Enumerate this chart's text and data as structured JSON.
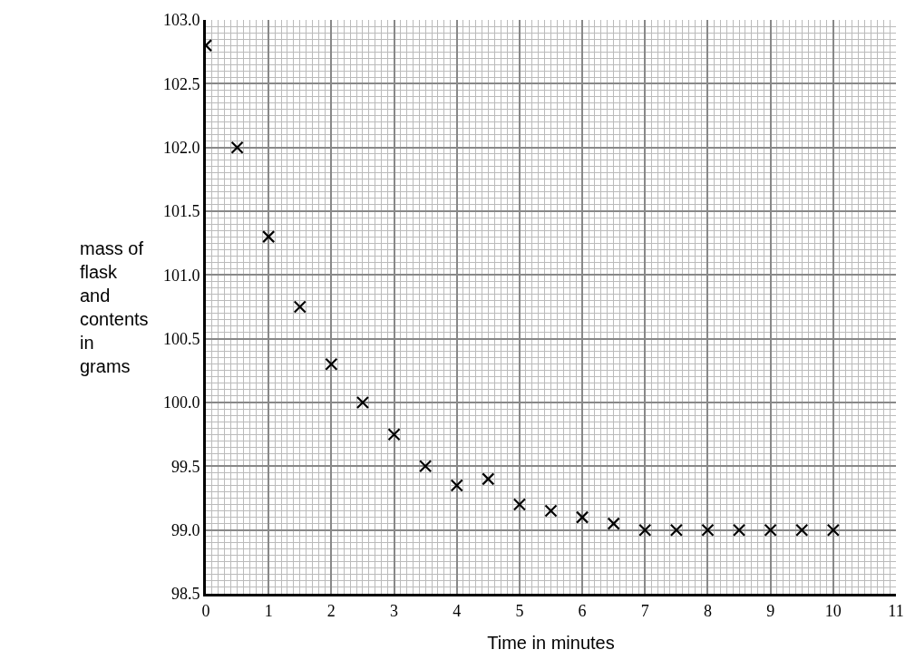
{
  "chart_data": {
    "type": "scatter",
    "xlabel": "Time in minutes",
    "ylabel": "mass of\nflask\nand\ncontents\nin\ngrams",
    "x": [
      0,
      0.5,
      1,
      1.5,
      2,
      2.5,
      3,
      3.5,
      4,
      4.5,
      5,
      5.5,
      6,
      6.5,
      7,
      7.5,
      8,
      8.5,
      9,
      9.5,
      10
    ],
    "series": [
      {
        "color": "#000000",
        "values": [
          102.8,
          102.0,
          101.3,
          100.75,
          100.3,
          100.0,
          99.75,
          99.5,
          99.35,
          99.4,
          99.2,
          99.15,
          99.1,
          99.05,
          99.0,
          99.0,
          99.0,
          99.0,
          99.0,
          99.0,
          99.0
        ]
      }
    ],
    "xlim": [
      0,
      11
    ],
    "xticks": [
      0,
      1,
      2,
      3,
      4,
      5,
      6,
      7,
      8,
      9,
      10,
      11
    ],
    "ylim": [
      98.5,
      103
    ],
    "yticks": [
      98.5,
      {
        "value": 99,
        "label": "99.0"
      },
      99.5,
      {
        "value": 100,
        "label": "100.0"
      },
      100.5,
      {
        "value": 101,
        "label": "101.0"
      },
      101.5,
      {
        "value": 102,
        "label": "102.0"
      },
      102.5,
      {
        "value": 103,
        "label": "103.0"
      }
    ],
    "grid": true,
    "marker": "cross"
  }
}
